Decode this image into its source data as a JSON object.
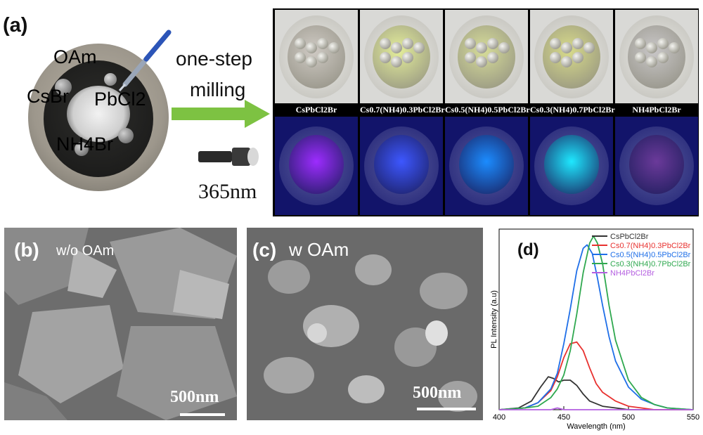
{
  "panel_a": {
    "label": "(a)",
    "mortar_labels": {
      "oam": "OAm",
      "csbr": "CsBr",
      "pbcl2": "PbCl2",
      "nh4br": "NH4Br"
    },
    "process_text_line1": "one-step",
    "process_text_line2": "milling",
    "uv_text": "365nm",
    "samples": [
      {
        "name": "CsPbCl2Br",
        "tint": "#cfcac4",
        "uv_color": "#9d2cff"
      },
      {
        "name": "Cs0.7(NH4)0.3PbCl2Br",
        "tint": "#e4ee9a",
        "uv_color": "#3d57ff"
      },
      {
        "name": "Cs0.5(NH4)0.5PbCl2Br",
        "tint": "#d7dd99",
        "uv_color": "#1b8cff"
      },
      {
        "name": "Cs0.3(NH4)0.7PbCl2Br",
        "tint": "#d8db8a",
        "uv_color": "#1ee8ff"
      },
      {
        "name": "NH4PbCl2Br",
        "tint": "#c9c7c8",
        "uv_color": "#6b3a9a"
      }
    ]
  },
  "panel_b": {
    "label": "(b)",
    "subtitle": "w/o OAm",
    "scale": "500nm"
  },
  "panel_c": {
    "label": "(c)",
    "subtitle": "w OAm",
    "scale": "500nm"
  },
  "panel_d": {
    "label": "(d)"
  },
  "chart_data": {
    "type": "line",
    "xlabel": "Wavelength (nm)",
    "ylabel": "PL Intensity (a.u)",
    "xlim": [
      400,
      550
    ],
    "ylim": [
      0,
      1.0
    ],
    "xticks": [
      400,
      450,
      500,
      550
    ],
    "legend_position": "top-right",
    "series": [
      {
        "name": "CsPbCl2Br",
        "color": "#333333",
        "x": [
          400,
          415,
          425,
          432,
          438,
          442,
          446,
          450,
          455,
          460,
          465,
          470,
          480,
          490,
          500,
          510,
          520,
          530,
          550
        ],
        "y": [
          0.0,
          0.01,
          0.05,
          0.13,
          0.19,
          0.18,
          0.16,
          0.17,
          0.17,
          0.14,
          0.09,
          0.05,
          0.02,
          0.01,
          0.0,
          0.0,
          0.0,
          0.0,
          0.0
        ]
      },
      {
        "name": "Cs0.7(NH4)0.3PbCl2Br",
        "color": "#e8312f",
        "x": [
          400,
          420,
          430,
          440,
          445,
          450,
          455,
          460,
          465,
          470,
          475,
          480,
          490,
          500,
          510,
          520,
          530,
          550
        ],
        "y": [
          0.0,
          0.01,
          0.04,
          0.11,
          0.19,
          0.3,
          0.38,
          0.39,
          0.34,
          0.24,
          0.15,
          0.1,
          0.05,
          0.02,
          0.01,
          0.0,
          0.0,
          0.0
        ]
      },
      {
        "name": "Cs0.5(NH4)0.5PbCl2Br",
        "color": "#1f6fe8",
        "x": [
          400,
          420,
          430,
          440,
          445,
          450,
          455,
          460,
          465,
          468,
          472,
          476,
          480,
          485,
          490,
          500,
          510,
          520,
          530,
          550
        ],
        "y": [
          0.0,
          0.01,
          0.04,
          0.12,
          0.21,
          0.38,
          0.58,
          0.8,
          0.93,
          0.95,
          0.9,
          0.76,
          0.6,
          0.42,
          0.28,
          0.13,
          0.06,
          0.03,
          0.01,
          0.0
        ]
      },
      {
        "name": "Cs0.3(NH4)0.7PbCl2Br",
        "color": "#2fa84f",
        "x": [
          400,
          420,
          430,
          440,
          445,
          450,
          455,
          460,
          465,
          470,
          473,
          476,
          480,
          485,
          490,
          500,
          510,
          520,
          530,
          550
        ],
        "y": [
          0.0,
          0.01,
          0.02,
          0.07,
          0.12,
          0.2,
          0.34,
          0.55,
          0.79,
          0.96,
          1.0,
          0.96,
          0.84,
          0.6,
          0.4,
          0.17,
          0.07,
          0.03,
          0.01,
          0.0
        ]
      },
      {
        "name": "NH4PbCl2Br",
        "color": "#b45fe0",
        "x": [
          400,
          440,
          445,
          450,
          460,
          500,
          550
        ],
        "y": [
          0.0,
          0.0,
          0.01,
          0.0,
          0.0,
          0.0,
          0.0
        ]
      }
    ]
  }
}
